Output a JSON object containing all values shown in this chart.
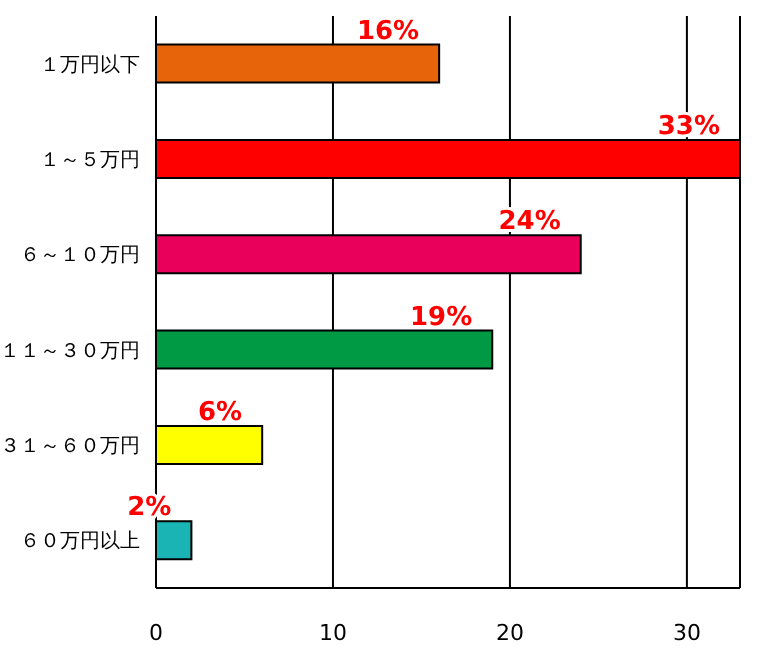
{
  "chart_data": {
    "type": "bar",
    "orientation": "horizontal",
    "categories": [
      "１万円以下",
      "１～５万円",
      "６～１０万円",
      "１１～３０万円",
      "３１～６０万円",
      "６０万円以上"
    ],
    "values": [
      16,
      33,
      24,
      19,
      6,
      2
    ],
    "colors": [
      "#e8640a",
      "#ff0000",
      "#e8005a",
      "#009944",
      "#ffff00",
      "#1ab4b4"
    ],
    "value_labels": [
      "16%",
      "33%",
      "24%",
      "19%",
      "6%",
      "2%"
    ],
    "xlim": [
      0,
      33
    ],
    "xticks": [
      0,
      10,
      20,
      30
    ],
    "grid": "x",
    "legend": false
  }
}
